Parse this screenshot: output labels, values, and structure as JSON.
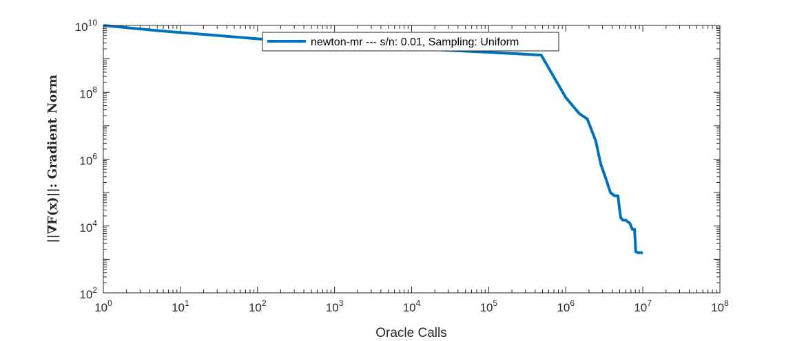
{
  "chart_data": {
    "type": "line",
    "xscale": "log",
    "yscale": "log",
    "xlim": [
      1,
      100000000
    ],
    "ylim": [
      100,
      10000000000
    ],
    "xlabel": "Oracle Calls",
    "ylabel": "||∇F(x)||: Gradient Norm",
    "xtick_exponents": [
      0,
      1,
      2,
      3,
      4,
      5,
      6,
      7,
      8
    ],
    "ytick_exponents": [
      2,
      4,
      6,
      8,
      10
    ],
    "tick_base": "10",
    "grid": false,
    "legend_position": "top-center",
    "series": [
      {
        "name": "newton-mr --- s/n: 0.01, Sampling: Uniform",
        "color": "#0072BD",
        "x": [
          1,
          5,
          30,
          200,
          1000,
          8000,
          50000,
          480000,
          1000000,
          1500000,
          1900000,
          2450000,
          2850000,
          3250000,
          3800000,
          4300000,
          4750000,
          5150000,
          5500000,
          6000000,
          6800000,
          7300000,
          7800000,
          8100000,
          8600000,
          10000000
        ],
        "y": [
          10000000000,
          7000000000,
          5000000000,
          3500000000,
          2700000000,
          2100000000,
          1700000000,
          1300000000,
          70000000,
          23000000,
          16000000,
          3500000,
          700000,
          300000,
          100000,
          80000,
          80000,
          18000,
          15000,
          15000,
          12000,
          8000,
          8000,
          1700,
          1600,
          1600
        ]
      }
    ]
  }
}
